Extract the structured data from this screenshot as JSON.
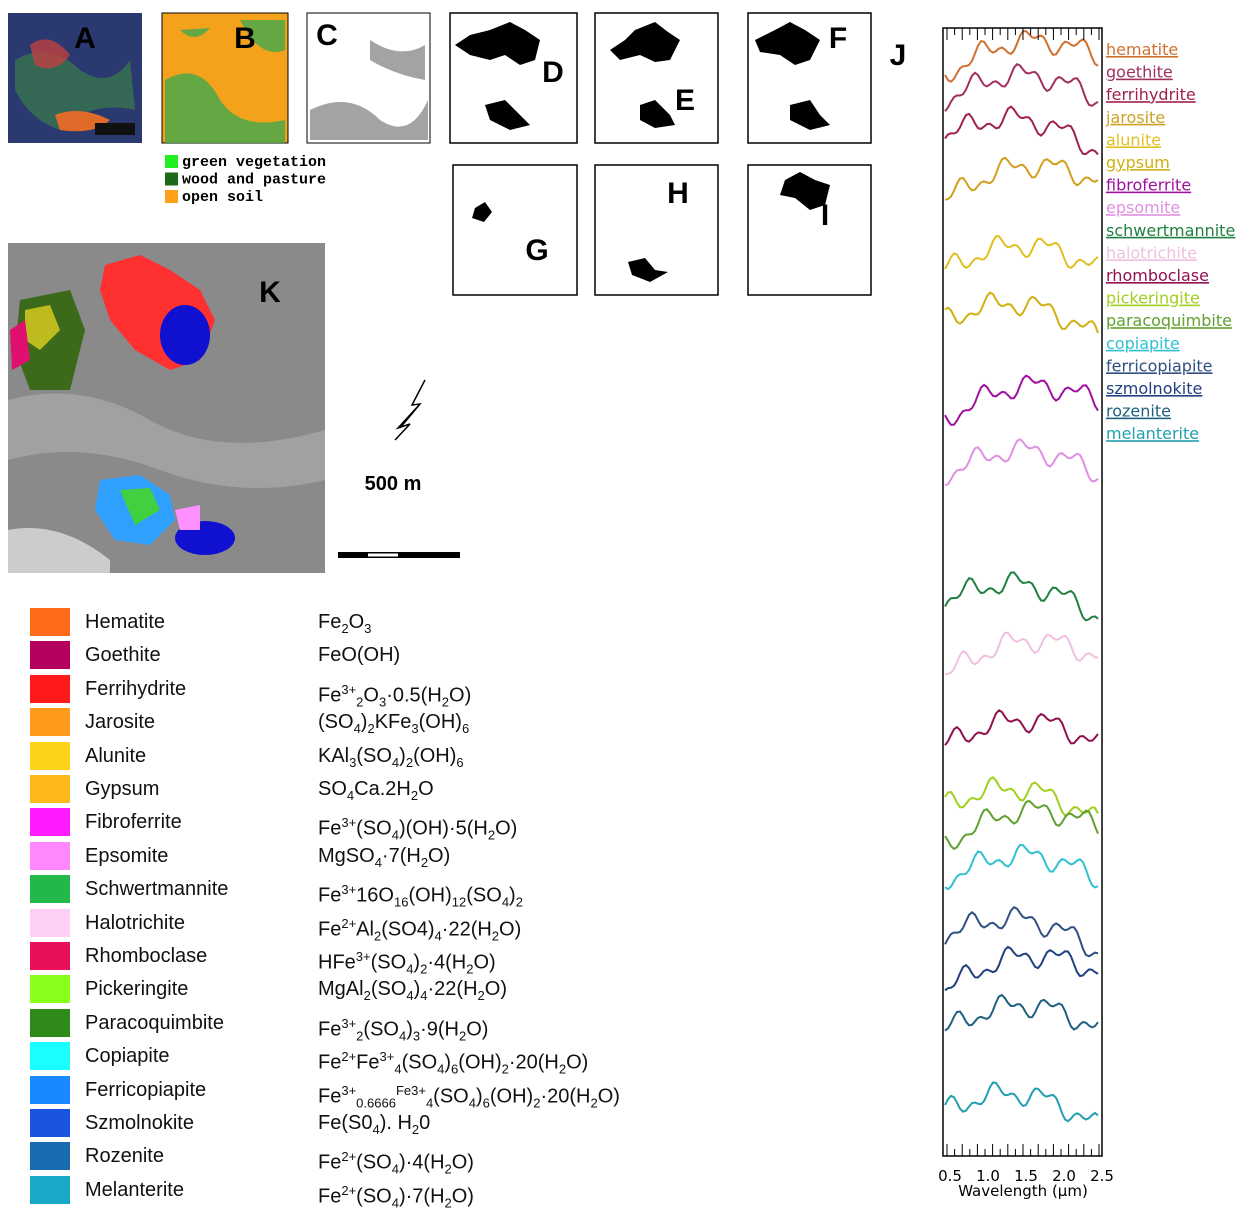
{
  "panel_labels": [
    "A",
    "B",
    "C",
    "D",
    "E",
    "F",
    "G",
    "H",
    "I",
    "J",
    "K"
  ],
  "land_cover_legend": [
    {
      "label": "green vegetation",
      "color": "#22ee22"
    },
    {
      "label": "wood and pasture",
      "color": "#1a6a1a"
    },
    {
      "label": "open soil",
      "color": "#ffa01a"
    }
  ],
  "scale_label": "500 m",
  "minerals": [
    {
      "name": "Hematite",
      "color": "#ff6a1a",
      "formula": [
        {
          "t": "Fe"
        },
        {
          "sub": "2"
        },
        {
          "t": "O"
        },
        {
          "sub": "3"
        }
      ]
    },
    {
      "name": "Goethite",
      "color": "#b5005e",
      "formula": [
        {
          "t": "FeO(OH)"
        }
      ]
    },
    {
      "name": "Ferrihydrite",
      "color": "#ff1a1a",
      "formula": [
        {
          "t": "Fe"
        },
        {
          "sup": "3+"
        },
        {
          "sub": "2"
        },
        {
          "t": "O"
        },
        {
          "sub": "3"
        },
        {
          "t": "·0.5(H"
        },
        {
          "sub": "2"
        },
        {
          "t": "O)"
        }
      ]
    },
    {
      "name": "Jarosite",
      "color": "#ff9a1a",
      "formula": [
        {
          "t": "(SO"
        },
        {
          "sub": "4"
        },
        {
          "t": ")"
        },
        {
          "sub": "2"
        },
        {
          "t": "KFe"
        },
        {
          "sub": "3"
        },
        {
          "t": "(OH)"
        },
        {
          "sub": "6"
        }
      ]
    },
    {
      "name": "Alunite",
      "color": "#ffd21a",
      "formula": [
        {
          "t": "KAl"
        },
        {
          "sub": "3"
        },
        {
          "t": "(SO"
        },
        {
          "sub": "4"
        },
        {
          "t": ")"
        },
        {
          "sub": "2"
        },
        {
          "t": "(OH)"
        },
        {
          "sub": "6"
        }
      ]
    },
    {
      "name": "Gypsum",
      "color": "#ffb81a",
      "formula": [
        {
          "t": "SO"
        },
        {
          "sub": "4"
        },
        {
          "t": "Ca.2H"
        },
        {
          "sub": "2"
        },
        {
          "t": "O"
        }
      ]
    },
    {
      "name": "Fibroferrite",
      "color": "#ff1aff",
      "formula": [
        {
          "t": "Fe"
        },
        {
          "sup": "3+"
        },
        {
          "t": "(SO"
        },
        {
          "sub": "4"
        },
        {
          "t": ")(OH)·5(H"
        },
        {
          "sub": "2"
        },
        {
          "t": "O)"
        }
      ]
    },
    {
      "name": "Epsomite",
      "color": "#ff88ff",
      "formula": [
        {
          "t": "MgSO"
        },
        {
          "sub": "4"
        },
        {
          "t": "·7(H"
        },
        {
          "sub": "2"
        },
        {
          "t": "O)"
        }
      ]
    },
    {
      "name": "Schwertmannite",
      "color": "#22b84a",
      "formula": [
        {
          "t": "Fe"
        },
        {
          "sup": "3+"
        },
        {
          "t": "16O"
        },
        {
          "sub": "16"
        },
        {
          "t": "(OH)"
        },
        {
          "sub": "12"
        },
        {
          "t": "(SO"
        },
        {
          "sub": "4"
        },
        {
          "t": ")"
        },
        {
          "sub": "2"
        }
      ]
    },
    {
      "name": "Halotrichite",
      "color": "#ffd0f5",
      "formula": [
        {
          "t": "Fe"
        },
        {
          "sup": "2+"
        },
        {
          "t": "Al"
        },
        {
          "sub": "2"
        },
        {
          "t": "(SO4)"
        },
        {
          "sub": "4"
        },
        {
          "t": "·22(H"
        },
        {
          "sub": "2"
        },
        {
          "t": "O)"
        }
      ]
    },
    {
      "name": "Rhomboclase",
      "color": "#e8105a",
      "formula": [
        {
          "t": "HFe"
        },
        {
          "sup": "3+"
        },
        {
          "t": "(SO"
        },
        {
          "sub": "4"
        },
        {
          "t": ")"
        },
        {
          "sub": "2"
        },
        {
          "t": "·4(H"
        },
        {
          "sub": "2"
        },
        {
          "t": "O)"
        }
      ]
    },
    {
      "name": "Pickeringite",
      "color": "#88ff1a",
      "formula": [
        {
          "t": "MgAl"
        },
        {
          "sub": "2"
        },
        {
          "t": "(SO"
        },
        {
          "sub": "4"
        },
        {
          "t": ")"
        },
        {
          "sub": "4"
        },
        {
          "t": "·22(H"
        },
        {
          "sub": "2"
        },
        {
          "t": "O)"
        }
      ]
    },
    {
      "name": "Paracoquimbite",
      "color": "#2e8b1a",
      "formula": [
        {
          "t": "Fe"
        },
        {
          "sup": "3+"
        },
        {
          "sub": "2"
        },
        {
          "t": "(SO"
        },
        {
          "sub": "4"
        },
        {
          "t": ")"
        },
        {
          "sub": "3"
        },
        {
          "t": "·9(H"
        },
        {
          "sub": "2"
        },
        {
          "t": "O)"
        }
      ]
    },
    {
      "name": "Copiapite",
      "color": "#1affff",
      "formula": [
        {
          "t": "Fe"
        },
        {
          "sup": "2+"
        },
        {
          "t": "Fe"
        },
        {
          "sup": "3+"
        },
        {
          "sub": "4"
        },
        {
          "t": "(SO"
        },
        {
          "sub": "4"
        },
        {
          "t": ")"
        },
        {
          "sub": "6"
        },
        {
          "t": "(OH)"
        },
        {
          "sub": "2"
        },
        {
          "t": "·20(H"
        },
        {
          "sub": "2"
        },
        {
          "t": "O)"
        }
      ]
    },
    {
      "name": "Ferricopiapite",
      "color": "#1a88ff",
      "formula": [
        {
          "t": "Fe"
        },
        {
          "sup": "3+"
        },
        {
          "sub": "0.6666"
        },
        {
          "sup": "Fe3+"
        },
        {
          "sub": "4"
        },
        {
          "t": "(SO"
        },
        {
          "sub": "4"
        },
        {
          "t": ")"
        },
        {
          "sub": "6"
        },
        {
          "t": "(OH)"
        },
        {
          "sub": "2"
        },
        {
          "t": "·20(H"
        },
        {
          "sub": "2"
        },
        {
          "t": "O)"
        }
      ]
    },
    {
      "name": "Szmolnokite",
      "color": "#1a55e0",
      "formula": [
        {
          "t": "Fe(S0"
        },
        {
          "sub": "4"
        },
        {
          "t": "). H"
        },
        {
          "sub": "2"
        },
        {
          "t": "0"
        }
      ]
    },
    {
      "name": "Rozenite",
      "color": "#1a6ab0",
      "formula": [
        {
          "t": "Fe"
        },
        {
          "sup": "2+"
        },
        {
          "t": "(SO"
        },
        {
          "sub": "4"
        },
        {
          "t": ")·4(H"
        },
        {
          "sub": "2"
        },
        {
          "t": "O)"
        }
      ]
    },
    {
      "name": "Melanterite",
      "color": "#1aa8c8",
      "formula": [
        {
          "t": "Fe"
        },
        {
          "sup": "2+"
        },
        {
          "t": "(SO"
        },
        {
          "sub": "4"
        },
        {
          "t": ")·7(H"
        },
        {
          "sub": "2"
        },
        {
          "t": "O)"
        }
      ]
    }
  ],
  "spectra": {
    "labels": [
      {
        "name": "hematite",
        "color": "#d07030"
      },
      {
        "name": "goethite",
        "color": "#a03060"
      },
      {
        "name": "ferrihydrite",
        "color": "#a02050"
      },
      {
        "name": "jarosite",
        "color": "#d0a020"
      },
      {
        "name": "alunite",
        "color": "#e0c020"
      },
      {
        "name": "gypsum",
        "color": "#d0b010"
      },
      {
        "name": "fibroferrite",
        "color": "#a010a0"
      },
      {
        "name": "epsomite",
        "color": "#e090e0"
      },
      {
        "name": "schwertmannite",
        "color": "#208040"
      },
      {
        "name": "halotrichite",
        "color": "#f0c0e0"
      },
      {
        "name": "rhomboclase",
        "color": "#901050"
      },
      {
        "name": "pickeringite",
        "color": "#a0d020"
      },
      {
        "name": "paracoquimbite",
        "color": "#60a030"
      },
      {
        "name": "copiapite",
        "color": "#30c0d0"
      },
      {
        "name": "ferricopiapite",
        "color": "#305080"
      },
      {
        "name": "szmolnokite",
        "color": "#204080"
      },
      {
        "name": "rozenite",
        "color": "#206080"
      },
      {
        "name": "melanterite",
        "color": "#20a0b0"
      }
    ],
    "tick_labels": [
      "0.5",
      "1.0",
      "1.5",
      "2.0",
      "2.5"
    ],
    "axis_label": "Wavelength (μm)"
  }
}
